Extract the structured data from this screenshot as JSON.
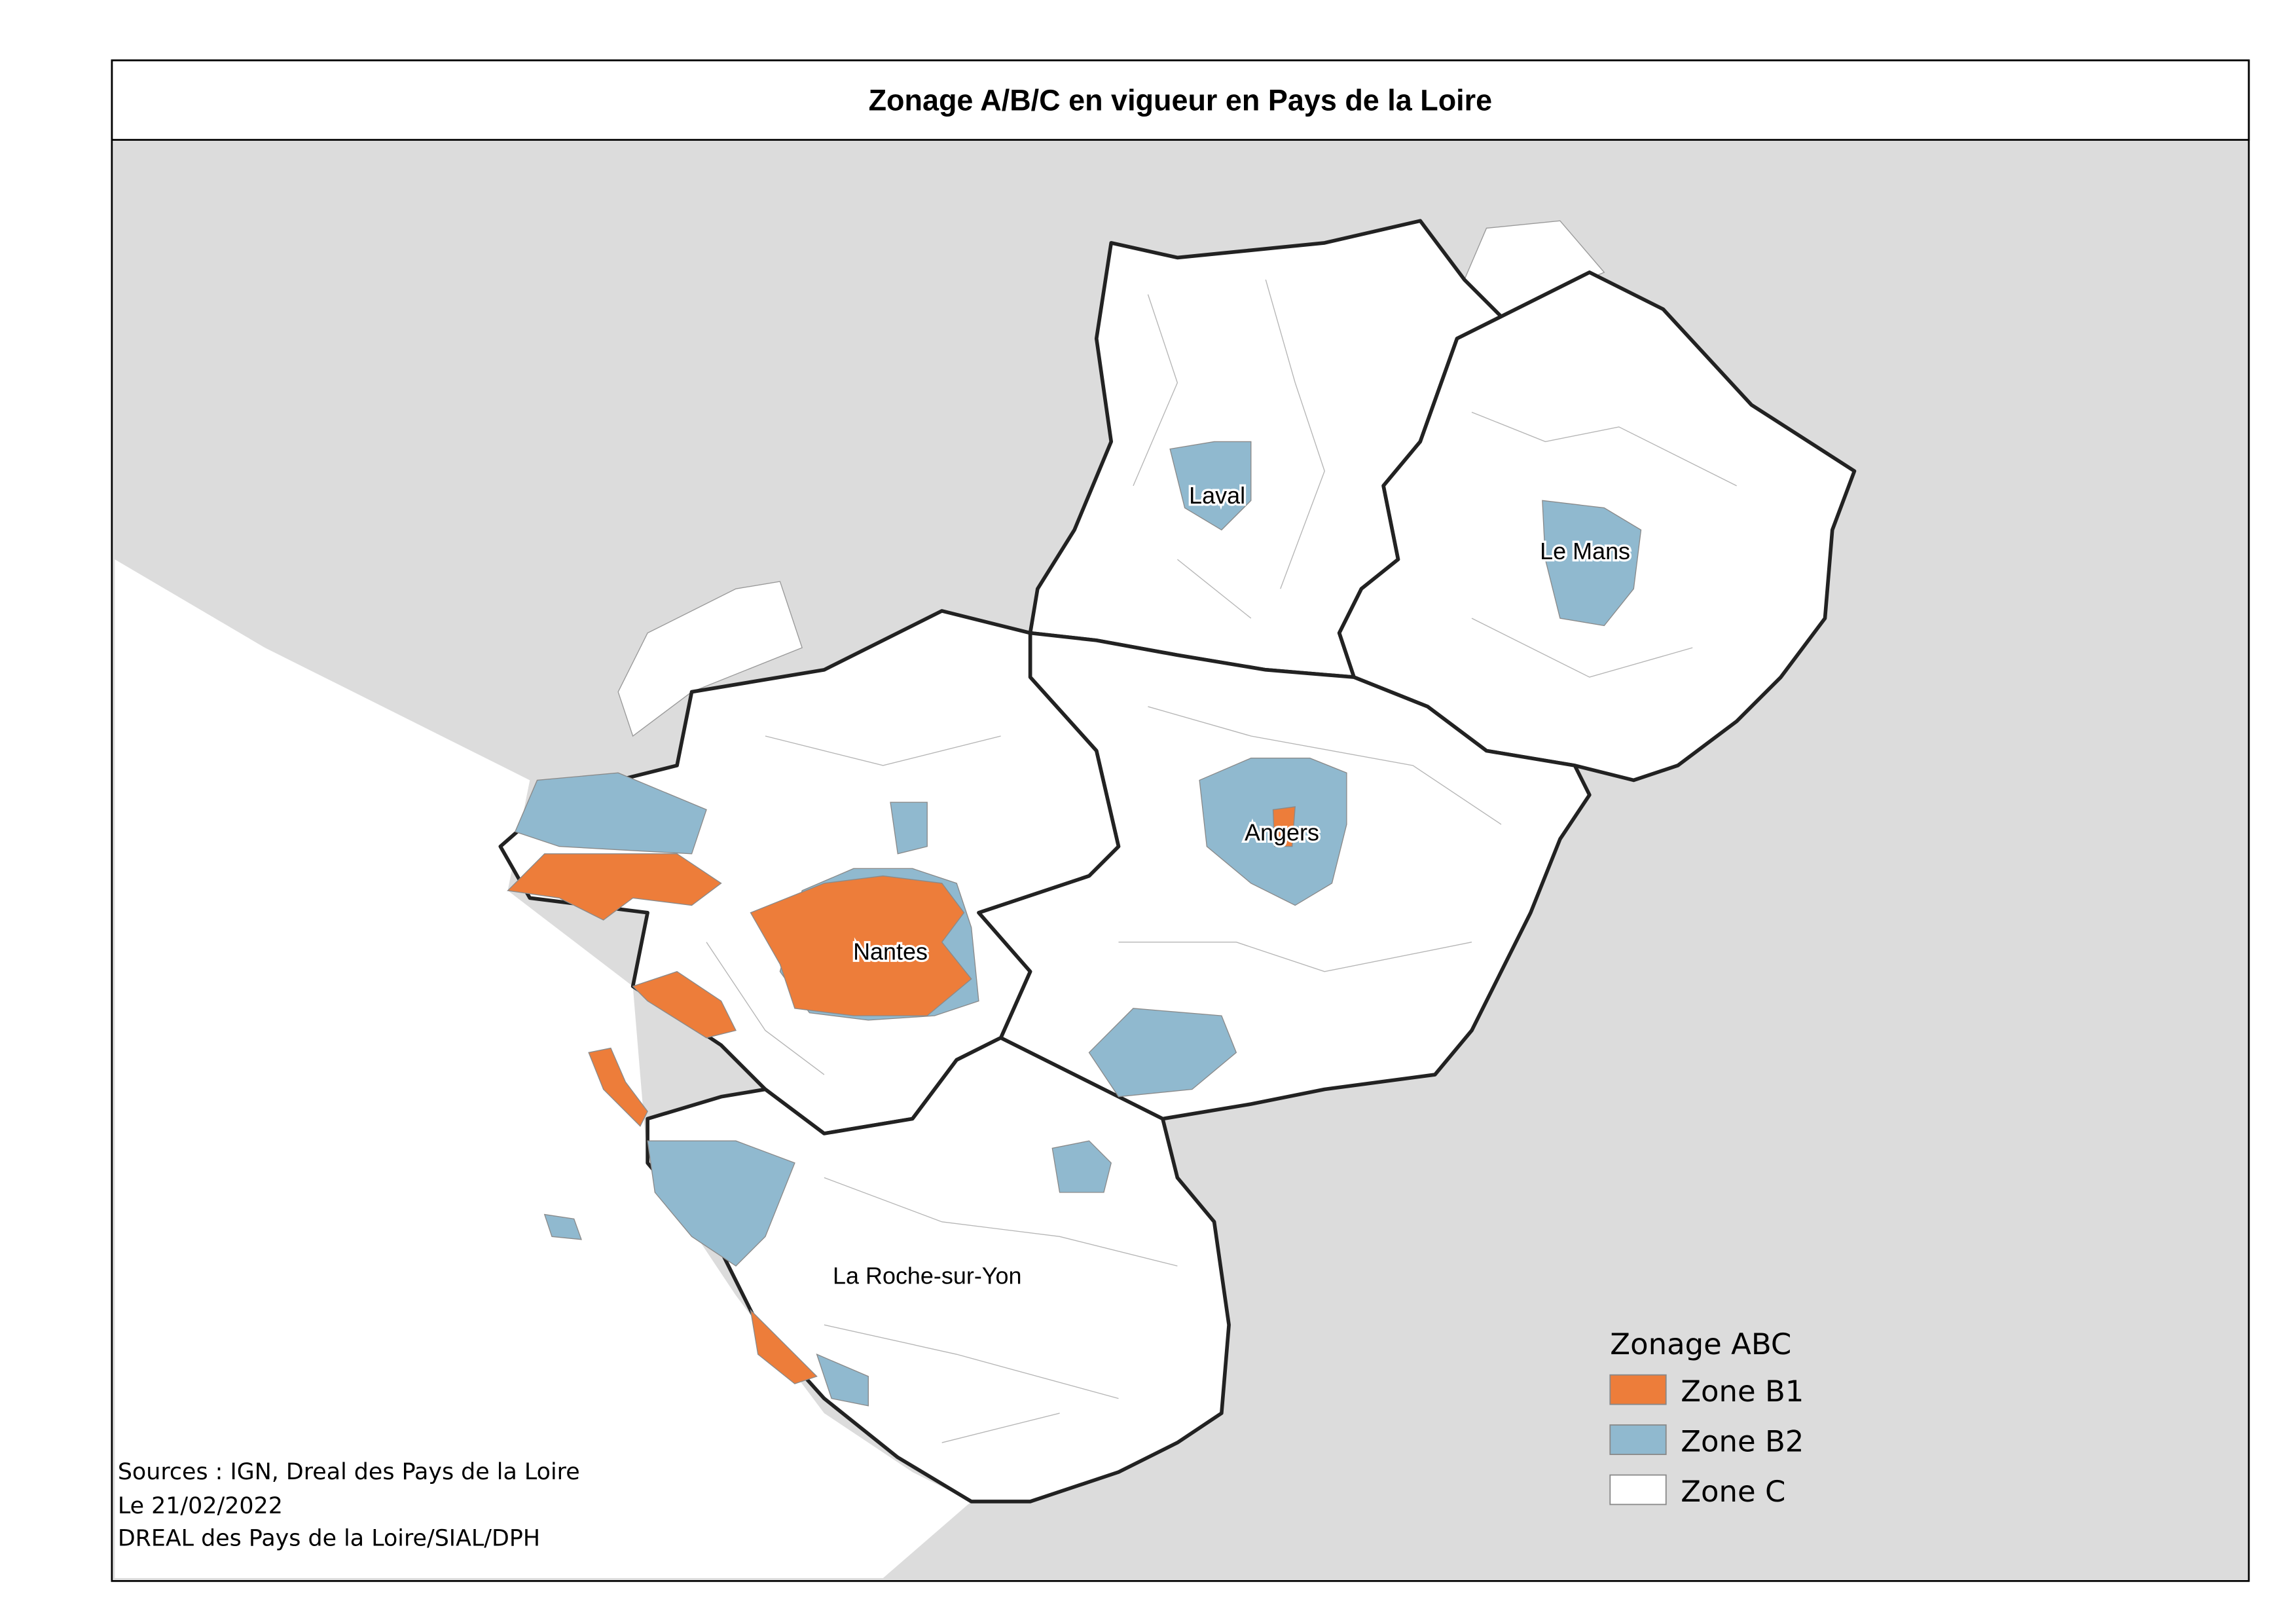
{
  "header": {
    "title": "Zonage A/B/C en vigueur en Pays de la Loire"
  },
  "cities": [
    "Laval",
    "Le Mans",
    "Angers",
    "Nantes",
    "La Roche-sur-Yon"
  ],
  "legend": {
    "title": "Zonage ABC",
    "items": [
      {
        "label": "Zone B1",
        "color": "#ed7d3a"
      },
      {
        "label": "Zone B2",
        "color": "#90b9cf"
      },
      {
        "label": "Zone C",
        "color": "#ffffff"
      }
    ]
  },
  "sources": [
    "Sources : IGN, Dreal des Pays de la Loire",
    "Le 21/02/2022",
    "DREAL des Pays de la Loire/SIAL/DPH"
  ]
}
